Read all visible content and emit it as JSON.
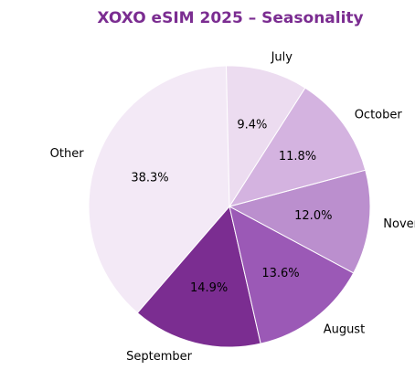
{
  "chart_data": {
    "type": "pie",
    "title": "XOXO eSIM 2025 – Seasonality",
    "title_color": "#7b2d91",
    "start_angle_deg": 91.3,
    "direction": "counterclockwise",
    "slices": [
      {
        "label": "Other",
        "value": 38.3,
        "pct_label": "38.3%",
        "color": "#f3e9f6"
      },
      {
        "label": "September",
        "value": 14.9,
        "pct_label": "14.9%",
        "color": "#7b2d91"
      },
      {
        "label": "August",
        "value": 13.6,
        "pct_label": "13.6%",
        "color": "#9b59b6"
      },
      {
        "label": "November",
        "value": 12.0,
        "pct_label": "12.0%",
        "color": "#bb8fce"
      },
      {
        "label": "October",
        "value": 11.8,
        "pct_label": "11.8%",
        "color": "#d4b3e0"
      },
      {
        "label": "July",
        "value": 9.4,
        "pct_label": "9.4%",
        "color": "#ecdcf0"
      }
    ]
  }
}
